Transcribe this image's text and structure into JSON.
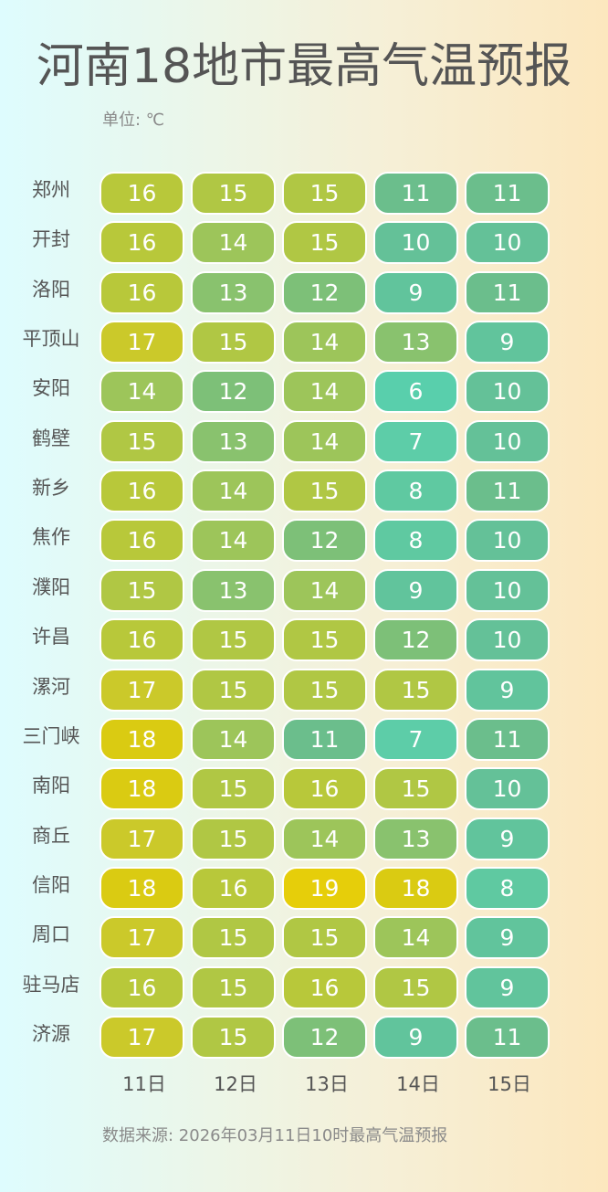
{
  "title": "河南18地市最高气温预报",
  "unit_label": "单位: ℃",
  "source_label": "数据来源: 2026年03月11日10时最高气温预报",
  "chart_data": {
    "type": "heatmap",
    "title": "河南18地市最高气温预报",
    "unit": "℃",
    "xlabel": "",
    "ylabel": "",
    "x": [
      "11日",
      "12日",
      "13日",
      "14日",
      "15日"
    ],
    "y": [
      "郑州",
      "开封",
      "洛阳",
      "平顶山",
      "安阳",
      "鹤壁",
      "新乡",
      "焦作",
      "濮阳",
      "许昌",
      "漯河",
      "三门峡",
      "南阳",
      "商丘",
      "信阳",
      "周口",
      "驻马店",
      "济源"
    ],
    "values": [
      [
        16,
        15,
        15,
        11,
        11
      ],
      [
        16,
        14,
        15,
        10,
        10
      ],
      [
        16,
        13,
        12,
        9,
        11
      ],
      [
        17,
        15,
        14,
        13,
        9
      ],
      [
        14,
        12,
        14,
        6,
        10
      ],
      [
        15,
        13,
        14,
        7,
        10
      ],
      [
        16,
        14,
        15,
        8,
        11
      ],
      [
        16,
        14,
        12,
        8,
        10
      ],
      [
        15,
        13,
        14,
        9,
        10
      ],
      [
        16,
        15,
        15,
        12,
        10
      ],
      [
        17,
        15,
        15,
        15,
        9
      ],
      [
        18,
        14,
        11,
        7,
        11
      ],
      [
        18,
        15,
        16,
        15,
        10
      ],
      [
        17,
        15,
        14,
        13,
        9
      ],
      [
        18,
        16,
        19,
        18,
        8
      ],
      [
        17,
        15,
        15,
        14,
        9
      ],
      [
        16,
        15,
        16,
        15,
        9
      ],
      [
        17,
        15,
        12,
        9,
        11
      ]
    ],
    "color_scale": {
      "6": "#59CFAC",
      "7": "#5DCDA8",
      "8": "#5FC9A1",
      "9": "#61C49C",
      "10": "#64C198",
      "11": "#6BBE8C",
      "12": "#7DC078",
      "13": "#89C26E",
      "14": "#9DC55A",
      "15": "#B0C744",
      "16": "#B8C83A",
      "17": "#CBC92A",
      "18": "#DACB12",
      "19": "#E6CE0A"
    },
    "source": "数据来源: 2026年03月11日10时最高气温预报"
  }
}
